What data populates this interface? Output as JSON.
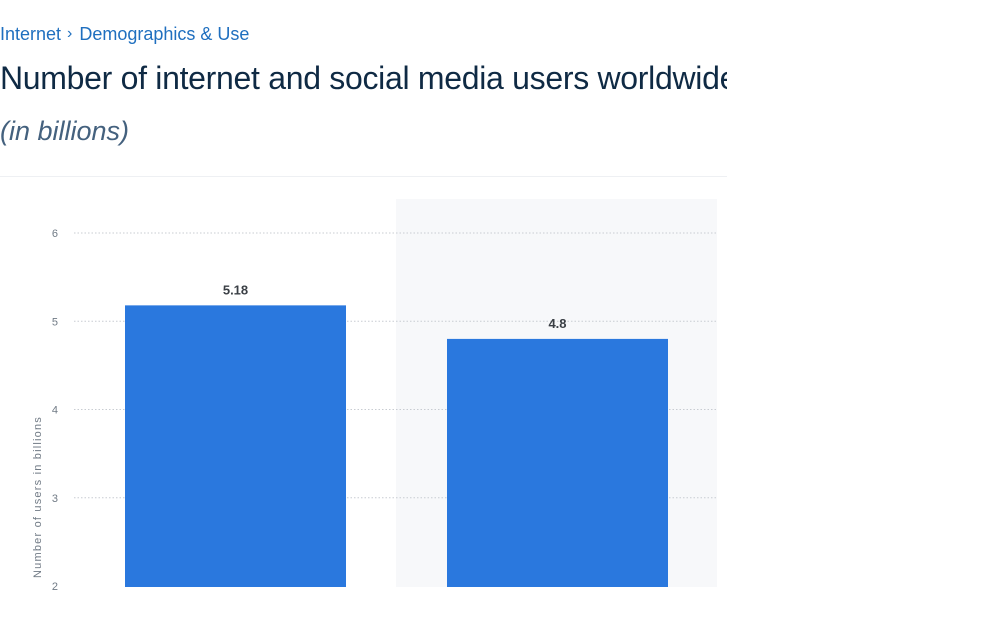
{
  "breadcrumb": {
    "items": [
      "Internet",
      "Demographics & Use"
    ],
    "separator": "›"
  },
  "header": {
    "title": "Number of internet and social media users worldwide as",
    "subtitle": "(in billions)"
  },
  "colors": {
    "bar": "#2a78de",
    "link": "#1f6fbf",
    "title": "#0f2a44",
    "subtitle": "#44617e",
    "grid": "#c8ccd2",
    "tick": "#707a85",
    "data_label": "#3a3f45",
    "highlight_bg": "#f7f8fa"
  },
  "chart_data": {
    "type": "bar",
    "categories": [
      "",
      ""
    ],
    "values": [
      5.18,
      4.8
    ],
    "data_labels": [
      "5.18",
      "4.8"
    ],
    "title": "Number of internet and social media users worldwide as",
    "subtitle": "(in billions)",
    "xlabel": "",
    "ylabel": "Number of users in billions",
    "ylim": [
      2,
      6
    ],
    "yticks": [
      2,
      3,
      4,
      5,
      6
    ],
    "grid": true,
    "legend": "none"
  }
}
